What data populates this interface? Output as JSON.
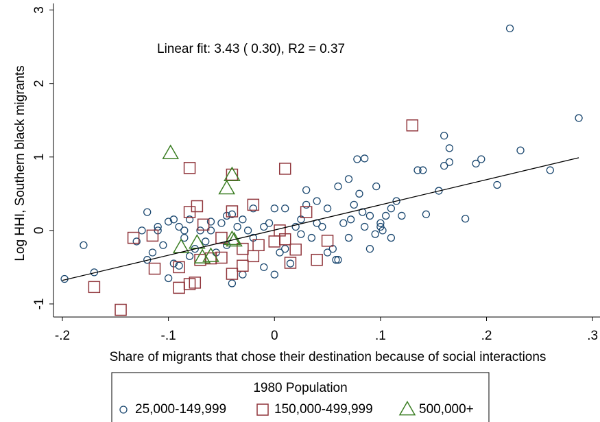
{
  "chart_data": {
    "type": "scatter",
    "annotation": "Linear fit:  3.43 ( 0.30), R2 =  0.37",
    "x_label": "Share of migrants that chose their destination because of social interactions",
    "y_label": "Log HHI, Southern black migrants",
    "xlim": [
      -0.2084,
      0.307
    ],
    "ylim": [
      -1.178,
      3.09
    ],
    "xticks": [
      {
        "value": -0.2,
        "label": "-.2"
      },
      {
        "value": -0.1,
        "label": "-.1"
      },
      {
        "value": 0,
        "label": "0"
      },
      {
        "value": 0.1,
        "label": ".1"
      },
      {
        "value": 0.2,
        "label": ".2"
      },
      {
        "value": 0.3,
        "label": ".3"
      }
    ],
    "yticks": [
      -1,
      0,
      1,
      2,
      3
    ],
    "legend_title": "1980 Population",
    "fit": {
      "x": [
        -0.2,
        0.287
      ],
      "y": [
        -0.68,
        0.99
      ],
      "color": "#000000"
    },
    "series": [
      {
        "name": "25,000-149,999",
        "marker": "circle",
        "color": "#1a476f",
        "x": [
          0.222,
          0.287,
          0.16,
          0.165,
          0.232,
          0.195,
          0.19,
          0.16,
          0.165,
          0.26,
          0.21,
          0.18,
          0.143,
          0.14,
          0.135,
          0.155,
          -0.198,
          -0.18,
          -0.17,
          0.078,
          0.085,
          0.07,
          0.08,
          0.096,
          0.06,
          0.05,
          0.075,
          0.072,
          0.083,
          0.11,
          0.115,
          0.105,
          0.1,
          0.12,
          0.095,
          0.09,
          0.1,
          0.11,
          0.085,
          0.07,
          0.06,
          0.04,
          0.03,
          0.025,
          0.035,
          0.02,
          0.01,
          0.005,
          0.0,
          -0.005,
          -0.01,
          -0.02,
          -0.025,
          -0.03,
          -0.035,
          -0.04,
          -0.045,
          -0.05,
          -0.055,
          -0.06,
          -0.065,
          -0.07,
          -0.075,
          -0.08,
          -0.085,
          -0.09,
          -0.095,
          -0.1,
          -0.105,
          -0.11,
          -0.115,
          -0.12,
          -0.125,
          -0.13,
          -0.12,
          -0.1,
          -0.09,
          -0.08,
          -0.045,
          -0.04,
          -0.03,
          0.0,
          0.015,
          0.045,
          0.05,
          0.055,
          0.058,
          0.065,
          0.09,
          0.102,
          0.025,
          -0.01,
          -0.06,
          -0.085,
          -0.095,
          0.03,
          0.04,
          -0.02,
          0.01,
          -0.11
        ],
        "y": [
          2.75,
          1.53,
          1.29,
          1.12,
          1.09,
          0.97,
          0.91,
          0.88,
          0.93,
          0.82,
          0.62,
          0.16,
          0.22,
          0.82,
          0.82,
          0.54,
          -0.66,
          -0.2,
          -0.57,
          0.97,
          0.98,
          0.7,
          0.5,
          0.6,
          0.6,
          0.3,
          0.35,
          0.15,
          0.25,
          0.3,
          0.4,
          0.2,
          0.1,
          0.2,
          -0.05,
          -0.25,
          0.05,
          -0.1,
          0.05,
          -0.1,
          -0.4,
          0.4,
          0.35,
          0.15,
          -0.1,
          0.05,
          0.3,
          -0.3,
          0.3,
          0.1,
          -0.5,
          -0.1,
          0.0,
          0.15,
          0.05,
          0.22,
          -0.2,
          0.1,
          -0.3,
          0.12,
          -0.15,
          0.0,
          -0.25,
          0.15,
          -0.1,
          0.05,
          -0.45,
          0.12,
          -0.2,
          0.05,
          -0.3,
          0.25,
          0.0,
          -0.15,
          -0.4,
          -0.65,
          -0.48,
          -0.35,
          0.2,
          -0.72,
          -0.6,
          -0.6,
          -0.45,
          0.05,
          -0.3,
          -0.25,
          -0.4,
          0.1,
          0.2,
          0.0,
          -0.05,
          0.05,
          0.0,
          0.0,
          0.15,
          0.55,
          0.1,
          0.3,
          -0.25,
          0.0
        ],
        "size": 5
      },
      {
        "name": "150,000-499,999",
        "marker": "square",
        "color": "#90353b",
        "x": [
          0.13,
          -0.08,
          0.01,
          -0.04,
          -0.08,
          -0.073,
          -0.02,
          -0.04,
          0.03,
          -0.067,
          -0.133,
          -0.115,
          -0.17,
          -0.145,
          -0.113,
          -0.09,
          -0.09,
          -0.08,
          -0.075,
          -0.06,
          -0.05,
          -0.04,
          -0.03,
          -0.03,
          -0.02,
          -0.015,
          0.0,
          0.005,
          0.01,
          0.015,
          0.02,
          0.04,
          0.05,
          -0.05,
          -0.07
        ],
        "y": [
          1.43,
          0.85,
          0.84,
          0.76,
          0.25,
          0.33,
          0.35,
          0.26,
          0.25,
          0.08,
          -0.1,
          -0.07,
          -0.77,
          -1.08,
          -0.52,
          -0.5,
          -0.78,
          -0.73,
          -0.71,
          -0.38,
          -0.37,
          -0.59,
          -0.48,
          -0.25,
          -0.35,
          -0.2,
          -0.15,
          0.0,
          -0.12,
          -0.44,
          -0.26,
          -0.4,
          -0.14,
          -0.1,
          -0.4
        ],
        "size": 16
      },
      {
        "name": "500,000+",
        "marker": "triangle",
        "color": "#3a7d22",
        "x": [
          -0.098,
          -0.04,
          -0.045,
          -0.088,
          -0.073,
          -0.068,
          -0.038,
          -0.06,
          -0.04
        ],
        "y": [
          1.05,
          0.75,
          0.57,
          -0.23,
          -0.17,
          -0.37,
          -0.14,
          -0.35,
          -0.12
        ],
        "size": 22
      }
    ]
  }
}
